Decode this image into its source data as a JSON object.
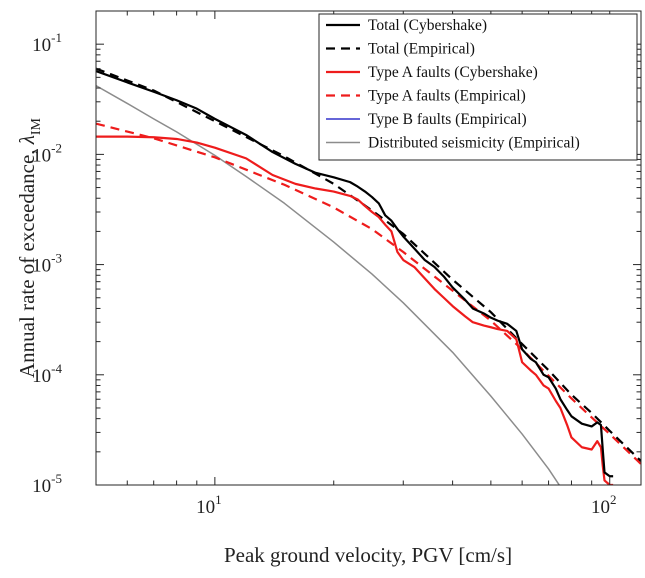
{
  "chart_data": {
    "type": "line",
    "xlabel": "Peak ground velocity, PGV [cm/s]",
    "ylabel": "Annual rate of exceedance, λ_IM",
    "x_scale": "log",
    "y_scale": "log",
    "xlim": [
      5,
      120
    ],
    "ylim": [
      1e-05,
      0.2
    ],
    "x_ticks": [
      {
        "value": 10,
        "base": "10",
        "exp": "1"
      },
      {
        "value": 100,
        "base": "10",
        "exp": "2"
      }
    ],
    "y_ticks": [
      {
        "value": 1e-05,
        "base": "10",
        "exp": "-5"
      },
      {
        "value": 0.0001,
        "base": "10",
        "exp": "-4"
      },
      {
        "value": 0.001,
        "base": "10",
        "exp": "-3"
      },
      {
        "value": 0.01,
        "base": "10",
        "exp": "-2"
      },
      {
        "value": 0.1,
        "base": "10",
        "exp": "-1"
      }
    ],
    "grid": false,
    "legend_position": "top-right",
    "series": [
      {
        "name": "Total (Cybershake)",
        "color": "#000000",
        "dash": "solid",
        "x": [
          5,
          6,
          7,
          8,
          9,
          10,
          12,
          14,
          16,
          18,
          20,
          22,
          23,
          24,
          25,
          26,
          27,
          28,
          29,
          30,
          32,
          34,
          36,
          38,
          40,
          43,
          45,
          48,
          50,
          52,
          55,
          58,
          60,
          63,
          65,
          68,
          70,
          73,
          75,
          78,
          80,
          85,
          90,
          93,
          95,
          96,
          97,
          100,
          102
        ],
        "values": [
          0.057,
          0.045,
          0.037,
          0.031,
          0.026,
          0.021,
          0.015,
          0.0105,
          0.0082,
          0.0068,
          0.0062,
          0.0056,
          0.0051,
          0.0046,
          0.0041,
          0.0036,
          0.0028,
          0.0025,
          0.0021,
          0.0018,
          0.0014,
          0.0011,
          0.00095,
          0.00078,
          0.00062,
          0.00048,
          0.0004,
          0.00036,
          0.00033,
          0.00031,
          0.00029,
          0.00025,
          0.00017,
          0.00014,
          0.00013,
          0.0001,
          9.5e-05,
          7.5e-05,
          6e-05,
          4.8e-05,
          4.2e-05,
          3.6e-05,
          3.4e-05,
          3.7e-05,
          3.5e-05,
          2.1e-05,
          1.3e-05,
          1.2e-05,
          1.2e-05
        ]
      },
      {
        "name": "Total (Empirical)",
        "color": "#000000",
        "dash": "dashed",
        "x": [
          5,
          7,
          10,
          15,
          20,
          25,
          30,
          40,
          50,
          60,
          70,
          80,
          90,
          100,
          120
        ],
        "values": [
          0.06,
          0.038,
          0.02,
          0.0096,
          0.0054,
          0.0031,
          0.0019,
          0.00073,
          0.00037,
          0.00019,
          0.00011,
          6.6e-05,
          4.5e-05,
          3.1e-05,
          1.65e-05
        ]
      },
      {
        "name": "Type A faults (Cybershake)",
        "color": "#ee1c1c",
        "dash": "solid",
        "x": [
          5,
          6,
          7,
          8,
          9,
          10,
          12,
          14,
          16,
          18,
          20,
          22,
          23,
          24,
          25,
          26,
          27,
          28,
          29,
          30,
          32,
          34,
          36,
          38,
          40,
          43,
          45,
          48,
          50,
          52,
          55,
          58,
          60,
          63,
          65,
          68,
          70,
          73,
          75,
          78,
          80,
          85,
          90,
          93,
          95,
          96,
          97,
          100,
          102
        ],
        "values": [
          0.0145,
          0.0145,
          0.0143,
          0.0138,
          0.0128,
          0.0115,
          0.0092,
          0.0065,
          0.0054,
          0.0049,
          0.0046,
          0.0042,
          0.0039,
          0.0034,
          0.003,
          0.0027,
          0.0023,
          0.002,
          0.0013,
          0.0011,
          0.00095,
          0.00075,
          0.0006,
          0.0005,
          0.00042,
          0.00034,
          0.0003,
          0.00028,
          0.00027,
          0.00026,
          0.00025,
          0.00021,
          0.00013,
          0.00011,
          0.0001,
          8e-05,
          7.5e-05,
          5.8e-05,
          5e-05,
          3.5e-05,
          2.7e-05,
          2.2e-05,
          2.1e-05,
          2.5e-05,
          2.2e-05,
          1.5e-05,
          1.1e-05,
          1e-05,
          1e-05
        ]
      },
      {
        "name": "Type A faults (Empirical)",
        "color": "#ee1c1c",
        "dash": "dashed",
        "x": [
          5,
          7,
          10,
          15,
          20,
          25,
          30,
          40,
          50,
          60,
          70,
          80,
          90,
          100,
          120
        ],
        "values": [
          0.019,
          0.014,
          0.0094,
          0.0053,
          0.0033,
          0.0021,
          0.0013,
          0.00058,
          0.00031,
          0.00017,
          9.8e-05,
          6.1e-05,
          4.1e-05,
          2.9e-05,
          1.55e-05
        ]
      },
      {
        "name": "Type B faults (Empirical)",
        "color": "#3333cc",
        "dash": "solid",
        "x": [],
        "values": []
      },
      {
        "name": "Distributed seismicity (Empirical)",
        "color": "#8c8c8c",
        "dash": "solid",
        "x": [
          5,
          6,
          7,
          8,
          10,
          12,
          15,
          20,
          25,
          30,
          40,
          50,
          60,
          70,
          80
        ],
        "values": [
          0.042,
          0.029,
          0.021,
          0.016,
          0.0098,
          0.0063,
          0.0036,
          0.0016,
          0.00082,
          0.00045,
          0.00016,
          6.4e-05,
          2.9e-05,
          1.4e-05,
          6.8e-06
        ]
      }
    ]
  }
}
